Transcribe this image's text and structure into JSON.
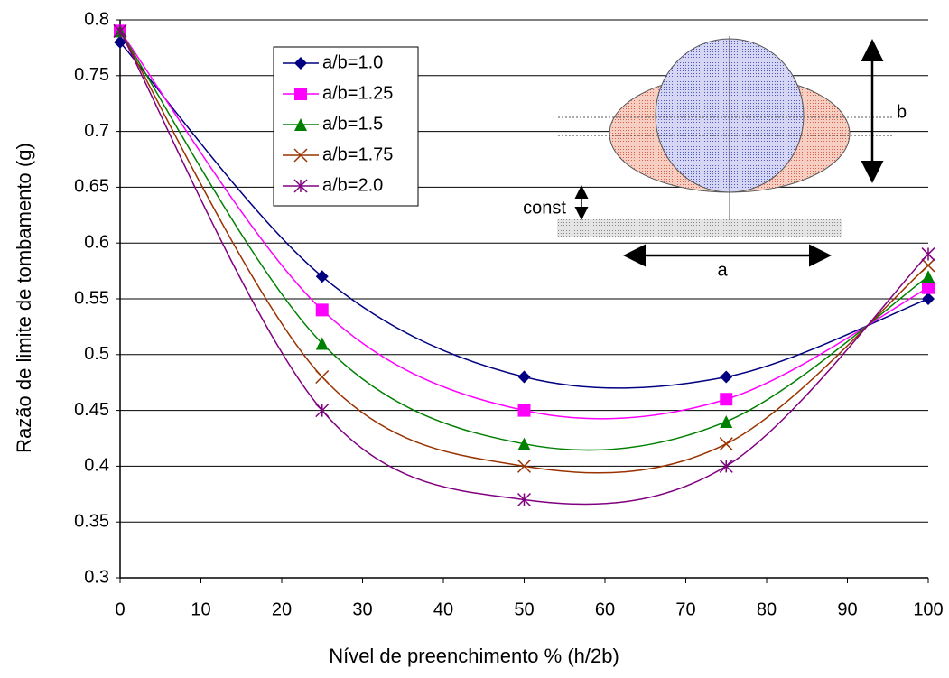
{
  "chart_data": {
    "type": "line",
    "x_label": "Nível de preenchimento % (h/2b)",
    "y_label": "Razão de limite de tombamento (g)",
    "x": [
      0,
      25,
      50,
      75,
      100
    ],
    "series": [
      {
        "name": "a/b=1.0",
        "color": "#000080",
        "marker": "diamond",
        "values": [
          0.78,
          0.57,
          0.48,
          0.48,
          0.55
        ]
      },
      {
        "name": "a/b=1.25",
        "color": "#ff00ff",
        "marker": "square",
        "values": [
          0.79,
          0.54,
          0.45,
          0.46,
          0.56
        ]
      },
      {
        "name": "a/b=1.5",
        "color": "#008000",
        "marker": "triangle",
        "values": [
          0.79,
          0.51,
          0.42,
          0.44,
          0.57
        ]
      },
      {
        "name": "a/b=1.75",
        "color": "#993300",
        "marker": "x",
        "values": [
          0.79,
          0.48,
          0.4,
          0.42,
          0.58
        ]
      },
      {
        "name": "a/b=2.0",
        "color": "#800080",
        "marker": "star",
        "values": [
          0.79,
          0.45,
          0.37,
          0.4,
          0.59
        ]
      }
    ],
    "xlim": [
      0,
      100
    ],
    "xticks": [
      0,
      10,
      20,
      30,
      40,
      50,
      60,
      70,
      80,
      90,
      100
    ],
    "ylim": [
      0.3,
      0.8
    ],
    "yticks": [
      0.3,
      0.35,
      0.4,
      0.45,
      0.5,
      0.55,
      0.6,
      0.65,
      0.7,
      0.75,
      0.8
    ],
    "grid": true,
    "smooth": true,
    "legend": "upper left",
    "annotations": [
      "b",
      "a",
      "const"
    ]
  }
}
